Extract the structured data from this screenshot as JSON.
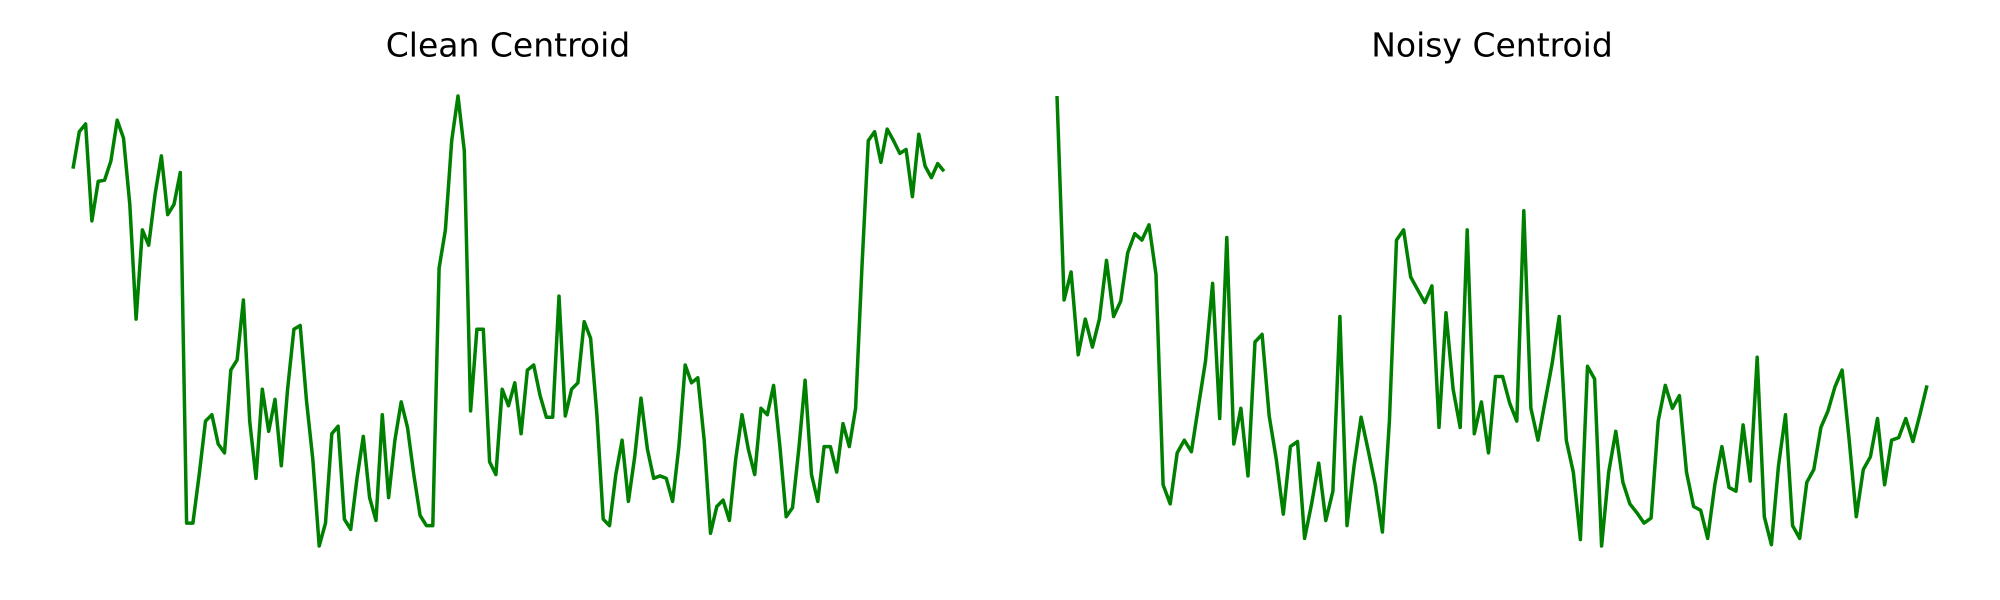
{
  "chart_data": [
    {
      "type": "line",
      "title": "Clean Centroid",
      "color": "#008000",
      "values": [
        298,
        327,
        333,
        257,
        288,
        289,
        304,
        336,
        322,
        270,
        180,
        250,
        238,
        278,
        308,
        262,
        270,
        295,
        20,
        20,
        58,
        100,
        105,
        82,
        75,
        140,
        148,
        195,
        100,
        55,
        125,
        92,
        117,
        65,
        125,
        172,
        175,
        116,
        70,
        2,
        20,
        90,
        96,
        23,
        15,
        55,
        88,
        40,
        22,
        105,
        40,
        85,
        115,
        95,
        58,
        26,
        18,
        18,
        220,
        250,
        320,
        355,
        312,
        108,
        172,
        172,
        68,
        58,
        125,
        112,
        130,
        90,
        140,
        144,
        120,
        103,
        103,
        198,
        104,
        125,
        130,
        178,
        165,
        105,
        23,
        18,
        58,
        85,
        37,
        72,
        118,
        78,
        55,
        57,
        55,
        37,
        80,
        144,
        130,
        134,
        85,
        12,
        33,
        38,
        22,
        70,
        105,
        78,
        58,
        110,
        105,
        128,
        80,
        25,
        32,
        78,
        132,
        58,
        37,
        80,
        80,
        60,
        98,
        80,
        110,
        220,
        320,
        327,
        303,
        329,
        320,
        310,
        313,
        276,
        325,
        300,
        291,
        302,
        296
      ]
    },
    {
      "type": "line",
      "title": "Noisy Centroid",
      "color": "#008000",
      "values": [
        355,
        195,
        217,
        152,
        180,
        158,
        180,
        226,
        182,
        194,
        232,
        247,
        242,
        254,
        215,
        50,
        35,
        75,
        85,
        76,
        112,
        147,
        208,
        102,
        244,
        82,
        110,
        57,
        162,
        168,
        104,
        70,
        27,
        80,
        84,
        8,
        35,
        67,
        22,
        45,
        182,
        18,
        65,
        103,
        77,
        50,
        13,
        100,
        242,
        250,
        213,
        203,
        193,
        206,
        95,
        185,
        125,
        95,
        250,
        90,
        115,
        75,
        135,
        135,
        114,
        100,
        265,
        110,
        85,
        115,
        145,
        182,
        85,
        60,
        7,
        143,
        133,
        2,
        60,
        92,
        52,
        35,
        28,
        20,
        24,
        100,
        128,
        110,
        120,
        60,
        33,
        30,
        8,
        50,
        80,
        48,
        45,
        97,
        53,
        150,
        25,
        3,
        65,
        105,
        18,
        8,
        52,
        62,
        95,
        108,
        127,
        140,
        85,
        25,
        62,
        72,
        102,
        50,
        85,
        87,
        102,
        84,
        105,
        128
      ]
    }
  ]
}
